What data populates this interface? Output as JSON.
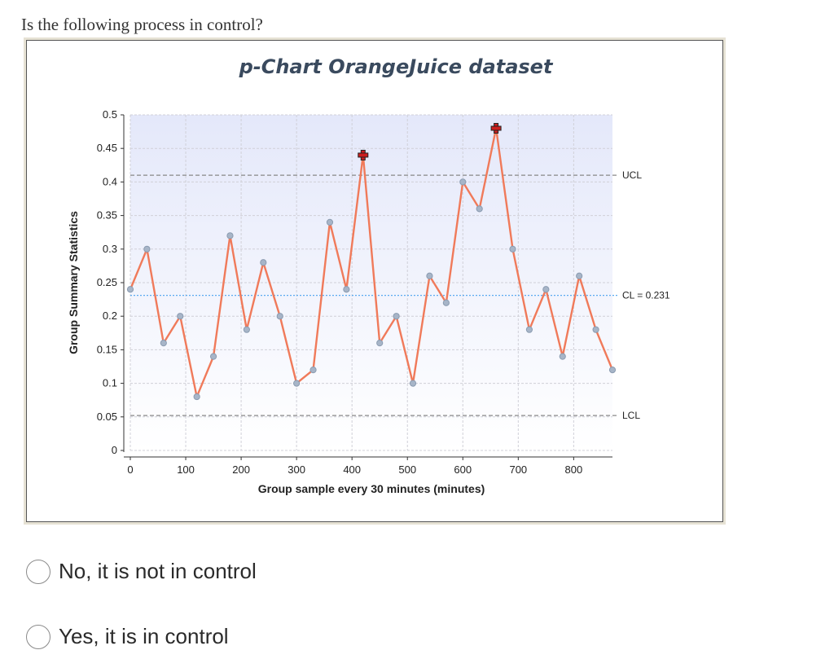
{
  "question": "Is the following process in control?",
  "chart_data": {
    "type": "line",
    "title": "p-Chart OrangeJuice dataset",
    "xlabel": "Group sample every 30 minutes (minutes)",
    "ylabel": "Group Summary Statistics",
    "xlim": [
      0,
      870
    ],
    "ylim": [
      0,
      0.5
    ],
    "x_ticks": [
      0,
      100,
      200,
      300,
      400,
      500,
      600,
      700,
      800
    ],
    "x_tick_labels": [
      "0",
      "100",
      "200",
      "300",
      "400",
      "500",
      "600",
      "700",
      "800"
    ],
    "y_ticks": [
      0,
      0.05,
      0.1,
      0.15,
      0.2,
      0.25,
      0.3,
      0.35,
      0.4,
      0.45,
      0.5
    ],
    "y_tick_labels": [
      "0",
      "0.05",
      "0.1",
      "0.15",
      "0.2",
      "0.25",
      "0.3",
      "0.35",
      "0.4",
      "0.45",
      "0.5"
    ],
    "grid": true,
    "series": [
      {
        "x": [
          0,
          30,
          60,
          90,
          120,
          150,
          180,
          210,
          240,
          270,
          300,
          330,
          360,
          390,
          420,
          450,
          480,
          510,
          540,
          570,
          600,
          630,
          660,
          690,
          720,
          750,
          780,
          810,
          840,
          870
        ],
        "values": [
          0.24,
          0.3,
          0.16,
          0.2,
          0.08,
          0.14,
          0.32,
          0.18,
          0.28,
          0.2,
          0.1,
          0.12,
          0.34,
          0.24,
          0.44,
          0.16,
          0.2,
          0.1,
          0.26,
          0.22,
          0.4,
          0.36,
          0.48,
          0.3,
          0.18,
          0.24,
          0.14,
          0.26,
          0.18,
          0.12
        ],
        "out_of_control_x": [
          420,
          660
        ],
        "color": "#f07a5a"
      }
    ],
    "control_limits": [
      {
        "label": "UCL",
        "value": 0.41,
        "color": "#888888"
      },
      {
        "label": "CL = 0.231",
        "value": 0.231,
        "color": "#5aaaf0"
      },
      {
        "label": "LCL",
        "value": 0.052,
        "color": "#888888"
      }
    ],
    "plot_background": "#e4e8fa",
    "point_color": "#a7b5c8",
    "alarm_color": "#cc1f1f"
  },
  "options": [
    {
      "label": "No, it is not in control"
    },
    {
      "label": "Yes, it is in control"
    }
  ]
}
